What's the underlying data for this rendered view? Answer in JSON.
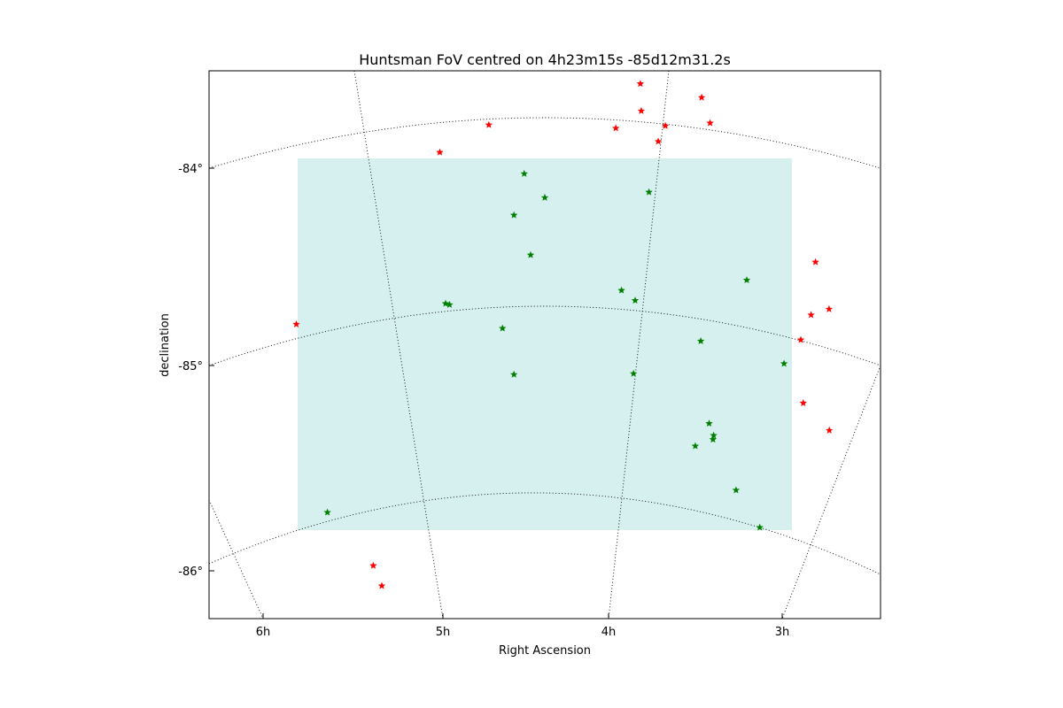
{
  "chart_data": {
    "type": "scatter",
    "title": "Huntsman FoV centred on 4h23m15s -85d12m31.2s",
    "xlabel": "Right Ascension",
    "ylabel": "declination",
    "x_ticks": [
      "6h",
      "5h",
      "4h",
      "3h"
    ],
    "y_ticks": [
      "-84°",
      "-85°",
      "-86°"
    ],
    "grid": "on",
    "colors": {
      "fov": "#d6efef",
      "outside": "#ff0000",
      "inside": "#008000"
    },
    "series": [
      {
        "marker": "star",
        "color": "#ff0000",
        "points": [
          [
            722.9,
            94.6
          ],
          [
            792.1,
            110.2
          ],
          [
            723.9,
            125.3
          ],
          [
            551.8,
            141.1
          ],
          [
            801.6,
            139.0
          ],
          [
            695.2,
            144.8
          ],
          [
            751.1,
            142.2
          ],
          [
            743.1,
            159.8
          ],
          [
            496.5,
            172.1
          ],
          [
            920.6,
            296.1
          ],
          [
            935.9,
            349.3
          ],
          [
            915.6,
            355.8
          ],
          [
            334.5,
            366.4
          ],
          [
            904.0,
            384.0
          ],
          [
            906.8,
            455.4
          ],
          [
            936.2,
            486.3
          ],
          [
            421.4,
            639.1
          ],
          [
            431.0,
            662.0
          ]
        ]
      },
      {
        "marker": "star",
        "color": "#008000",
        "points": [
          [
            591.8,
            196.3
          ],
          [
            615.0,
            223.3
          ],
          [
            732.6,
            217.1
          ],
          [
            580.2,
            243.1
          ],
          [
            599.0,
            288.1
          ],
          [
            843.0,
            316.5
          ],
          [
            701.6,
            328.1
          ],
          [
            717.0,
            339.5
          ],
          [
            503.0,
            343.0
          ],
          [
            507.5,
            344.3
          ],
          [
            567.3,
            371.0
          ],
          [
            791.1,
            385.4
          ],
          [
            885.1,
            410.9
          ],
          [
            580.2,
            423.2
          ],
          [
            715.2,
            422.2
          ],
          [
            800.5,
            478.5
          ],
          [
            805.6,
            492.0
          ],
          [
            804.9,
            496.6
          ],
          [
            784.9,
            504.0
          ],
          [
            830.9,
            553.9
          ],
          [
            369.6,
            579.0
          ],
          [
            857.7,
            596.0
          ]
        ]
      }
    ]
  }
}
